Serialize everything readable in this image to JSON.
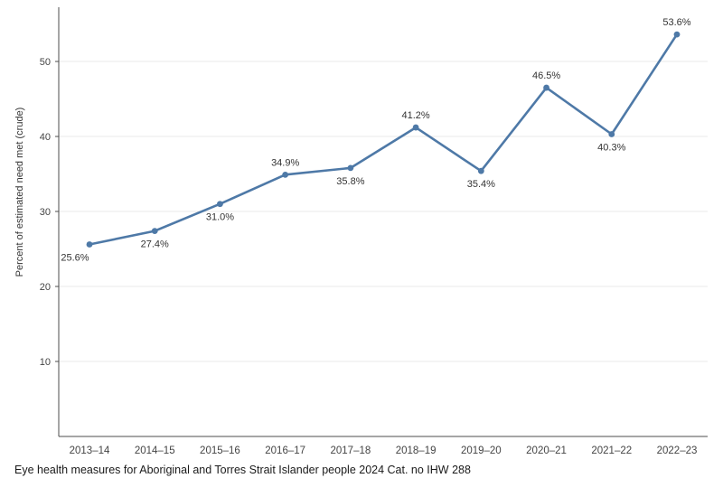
{
  "caption": "Eye health measures for Aboriginal and Torres Strait Islander people 2024 Cat. no IHW 288",
  "chart_data": {
    "type": "line",
    "title": "",
    "xlabel": "",
    "ylabel": "Percent of estimated need met (crude)",
    "categories": [
      "2013–14",
      "2014–15",
      "2015–16",
      "2016–17",
      "2017–18",
      "2018–19",
      "2019–20",
      "2020–21",
      "2021–22",
      "2022–23"
    ],
    "series": [
      {
        "name": "Percent of estimated need met (crude)",
        "values": [
          25.6,
          27.4,
          31.0,
          34.9,
          35.8,
          41.2,
          35.4,
          46.5,
          40.3,
          53.6
        ],
        "data_labels": [
          "25.6%",
          "27.4%",
          "31.0%",
          "34.9%",
          "35.8%",
          "41.2%",
          "35.4%",
          "46.5%",
          "40.3%",
          "53.6%"
        ],
        "label_positions": [
          "below",
          "below",
          "below",
          "above",
          "below",
          "above",
          "below",
          "above",
          "below",
          "above"
        ]
      }
    ],
    "ylim": [
      0,
      56.75
    ],
    "yticks": [
      10,
      20,
      30,
      40,
      50
    ],
    "grid": true,
    "legend_position": "none",
    "colors": {
      "line": "#4e79a7",
      "marker": "#4e79a7",
      "grid": "#e8e8e8",
      "axis": "#4d4d4d",
      "tick_text": "#444444",
      "data_label_text": "#333333",
      "axis_title_text": "#333333"
    }
  }
}
